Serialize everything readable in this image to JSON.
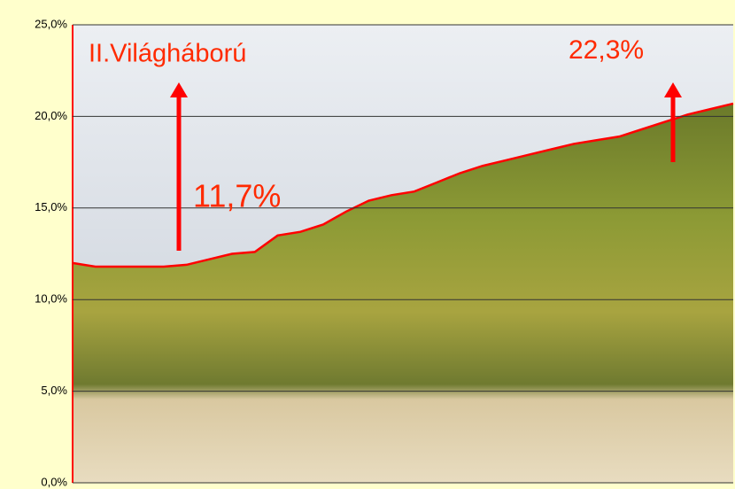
{
  "chart_data": {
    "type": "area",
    "categories": [
      null,
      null,
      null,
      null,
      null,
      null,
      null,
      null,
      null,
      null,
      null,
      null,
      null,
      null,
      null,
      null,
      null,
      null,
      null,
      null,
      null,
      null,
      null,
      null,
      null,
      null,
      null,
      null,
      null,
      null
    ],
    "values": [
      12.0,
      11.8,
      11.8,
      11.8,
      11.8,
      11.9,
      12.2,
      12.5,
      12.6,
      13.5,
      13.7,
      14.1,
      14.8,
      15.4,
      15.7,
      15.9,
      16.4,
      16.9,
      17.3,
      17.6,
      17.9,
      18.2,
      18.5,
      18.7,
      18.9,
      19.3,
      19.7,
      20.1,
      20.4,
      20.7
    ],
    "color": "#ff0000",
    "ylim": [
      0,
      25
    ],
    "yticks": [
      {
        "value": 0,
        "label": "0,0%"
      },
      {
        "value": 5,
        "label": "5,0%"
      },
      {
        "value": 10,
        "label": "10,0%"
      },
      {
        "value": 15,
        "label": "15,0%"
      },
      {
        "value": 20,
        "label": "20,0%"
      },
      {
        "value": 25,
        "label": "25,0%"
      }
    ],
    "grid": true,
    "annotations": [
      "II.Világháború",
      "11,7%",
      "22,3%"
    ]
  }
}
